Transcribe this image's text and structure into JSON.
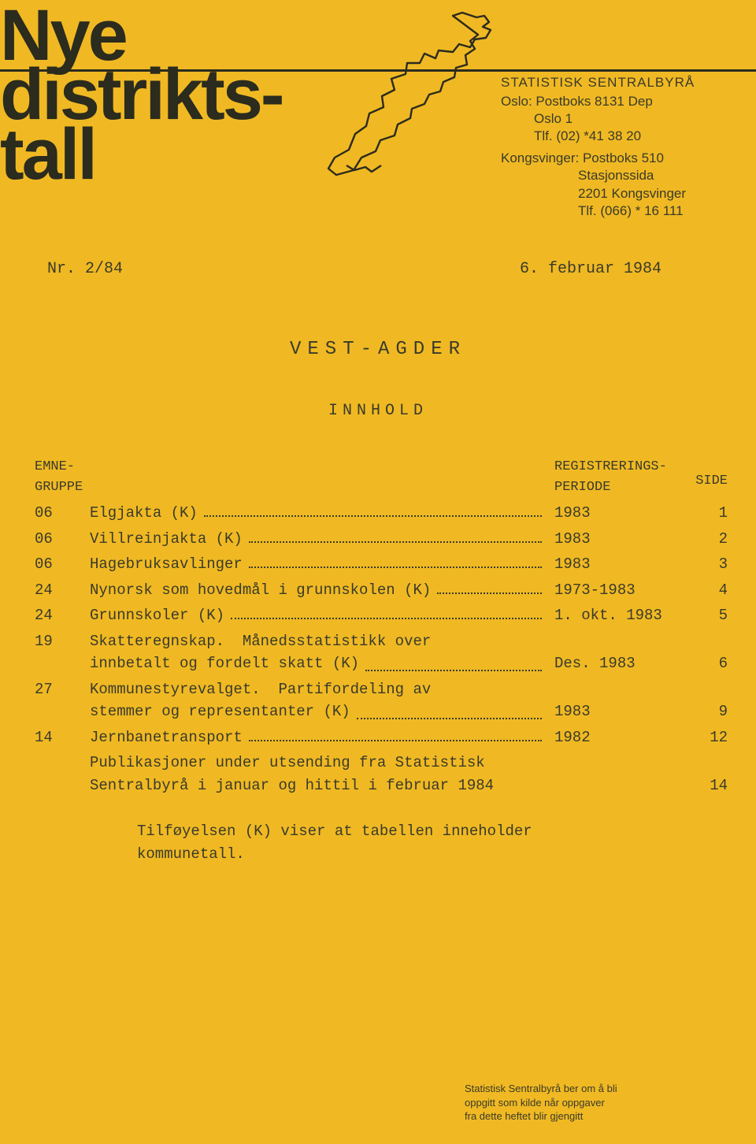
{
  "logo": {
    "l1": "Nye",
    "l2": "distrikts-",
    "l3": "tall"
  },
  "address": {
    "org": "STATISTISK SENTRALBYRÅ",
    "oslo_l1": "Oslo: Postboks 8131 Dep",
    "oslo_l2": "Oslo 1",
    "oslo_l3": "Tlf. (02) *41 38 20",
    "kong_l1": "Kongsvinger: Postboks 510",
    "kong_l2": "Stasjonssida",
    "kong_l3": "2201 Kongsvinger",
    "kong_l4": "Tlf. (066) * 16 111"
  },
  "issue": "Nr. 2/84",
  "date": "6. februar 1984",
  "region": "VEST-AGDER",
  "toc_title": "INNHOLD",
  "headers": {
    "group": "EMNE-\nGRUPPE",
    "period": "REGISTRERINGS-\nPERIODE",
    "side": "SIDE"
  },
  "rows": [
    {
      "group": "06",
      "title": "Elgjakta (K)",
      "title2": "",
      "period": "1983",
      "side": "1"
    },
    {
      "group": "06",
      "title": "Villreinjakta (K)",
      "title2": "",
      "period": "1983",
      "side": "2"
    },
    {
      "group": "06",
      "title": "Hagebruksavlinger",
      "title2": "",
      "period": "1983",
      "side": "3"
    },
    {
      "group": "24",
      "title": "Nynorsk som hovedmål i grunnskolen (K)",
      "title2": "",
      "period": "1973-1983",
      "side": "4"
    },
    {
      "group": "24",
      "title": "Grunnskoler (K)",
      "title2": "",
      "period": "1. okt. 1983",
      "side": "5"
    },
    {
      "group": "19",
      "title": "Skatteregnskap.  Månedsstatistikk over",
      "title2": "innbetalt og fordelt skatt (K)",
      "period": "Des. 1983",
      "side": "6"
    },
    {
      "group": "27",
      "title": "Kommunestyrevalget.  Partifordeling av",
      "title2": "stemmer og representanter (K)",
      "period": "1983",
      "side": "9"
    },
    {
      "group": "14",
      "title": "Jernbanetransport",
      "title2": "",
      "period": "1982",
      "side": "12"
    },
    {
      "group": "",
      "title": "Publikasjoner under utsending fra Statistisk",
      "title2": "Sentralbyrå i januar og hittil i februar 1984",
      "period": "",
      "side": "14"
    }
  ],
  "note": "Tilføyelsen (K) viser at tabellen inneholder kommunetall.",
  "footer": {
    "l1": "Statistisk Sentralbyrå ber om å bli",
    "l2": "oppgitt som kilde når oppgaver",
    "l3": "fra dette heftet blir gjengitt"
  }
}
